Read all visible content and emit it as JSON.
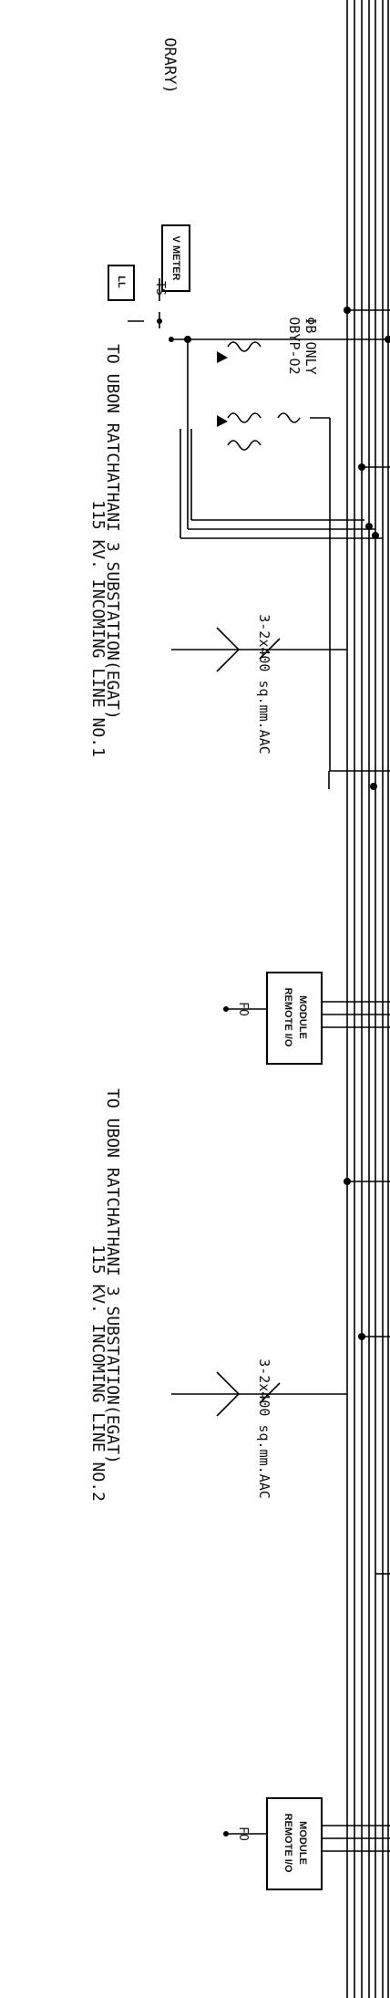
{
  "top_fragment": "ORARY)",
  "feeder_1": {
    "line_title": "115 KV. INCOMING LINE NO.1",
    "line_dest": "TO UBON RATCHATHANI 3 SUBSTATION(EGAT)",
    "conductor": "3-2x400 sq.mm.AAC",
    "remote_module_line1": "REMOTE I/O",
    "remote_module_line2": "MODULE",
    "fo_label": "FO"
  },
  "feeder_2": {
    "line_title": "115 KV. INCOMING LINE NO.2",
    "line_dest": "TO UBON RATCHATHANI 3 SUBSTATION(EGAT)",
    "conductor": "3-2x400 sq.mm.AAC",
    "remote_module_line1": "REMOTE I/O",
    "remote_module_line2": "MODULE",
    "fo_label": "FO"
  },
  "metering": {
    "vmeter_label": "V METER",
    "ts_label": "TS",
    "ll_label": "LL",
    "vt_label_1": "OBYP-O2",
    "vt_label_2": "ΦB ONLY"
  }
}
